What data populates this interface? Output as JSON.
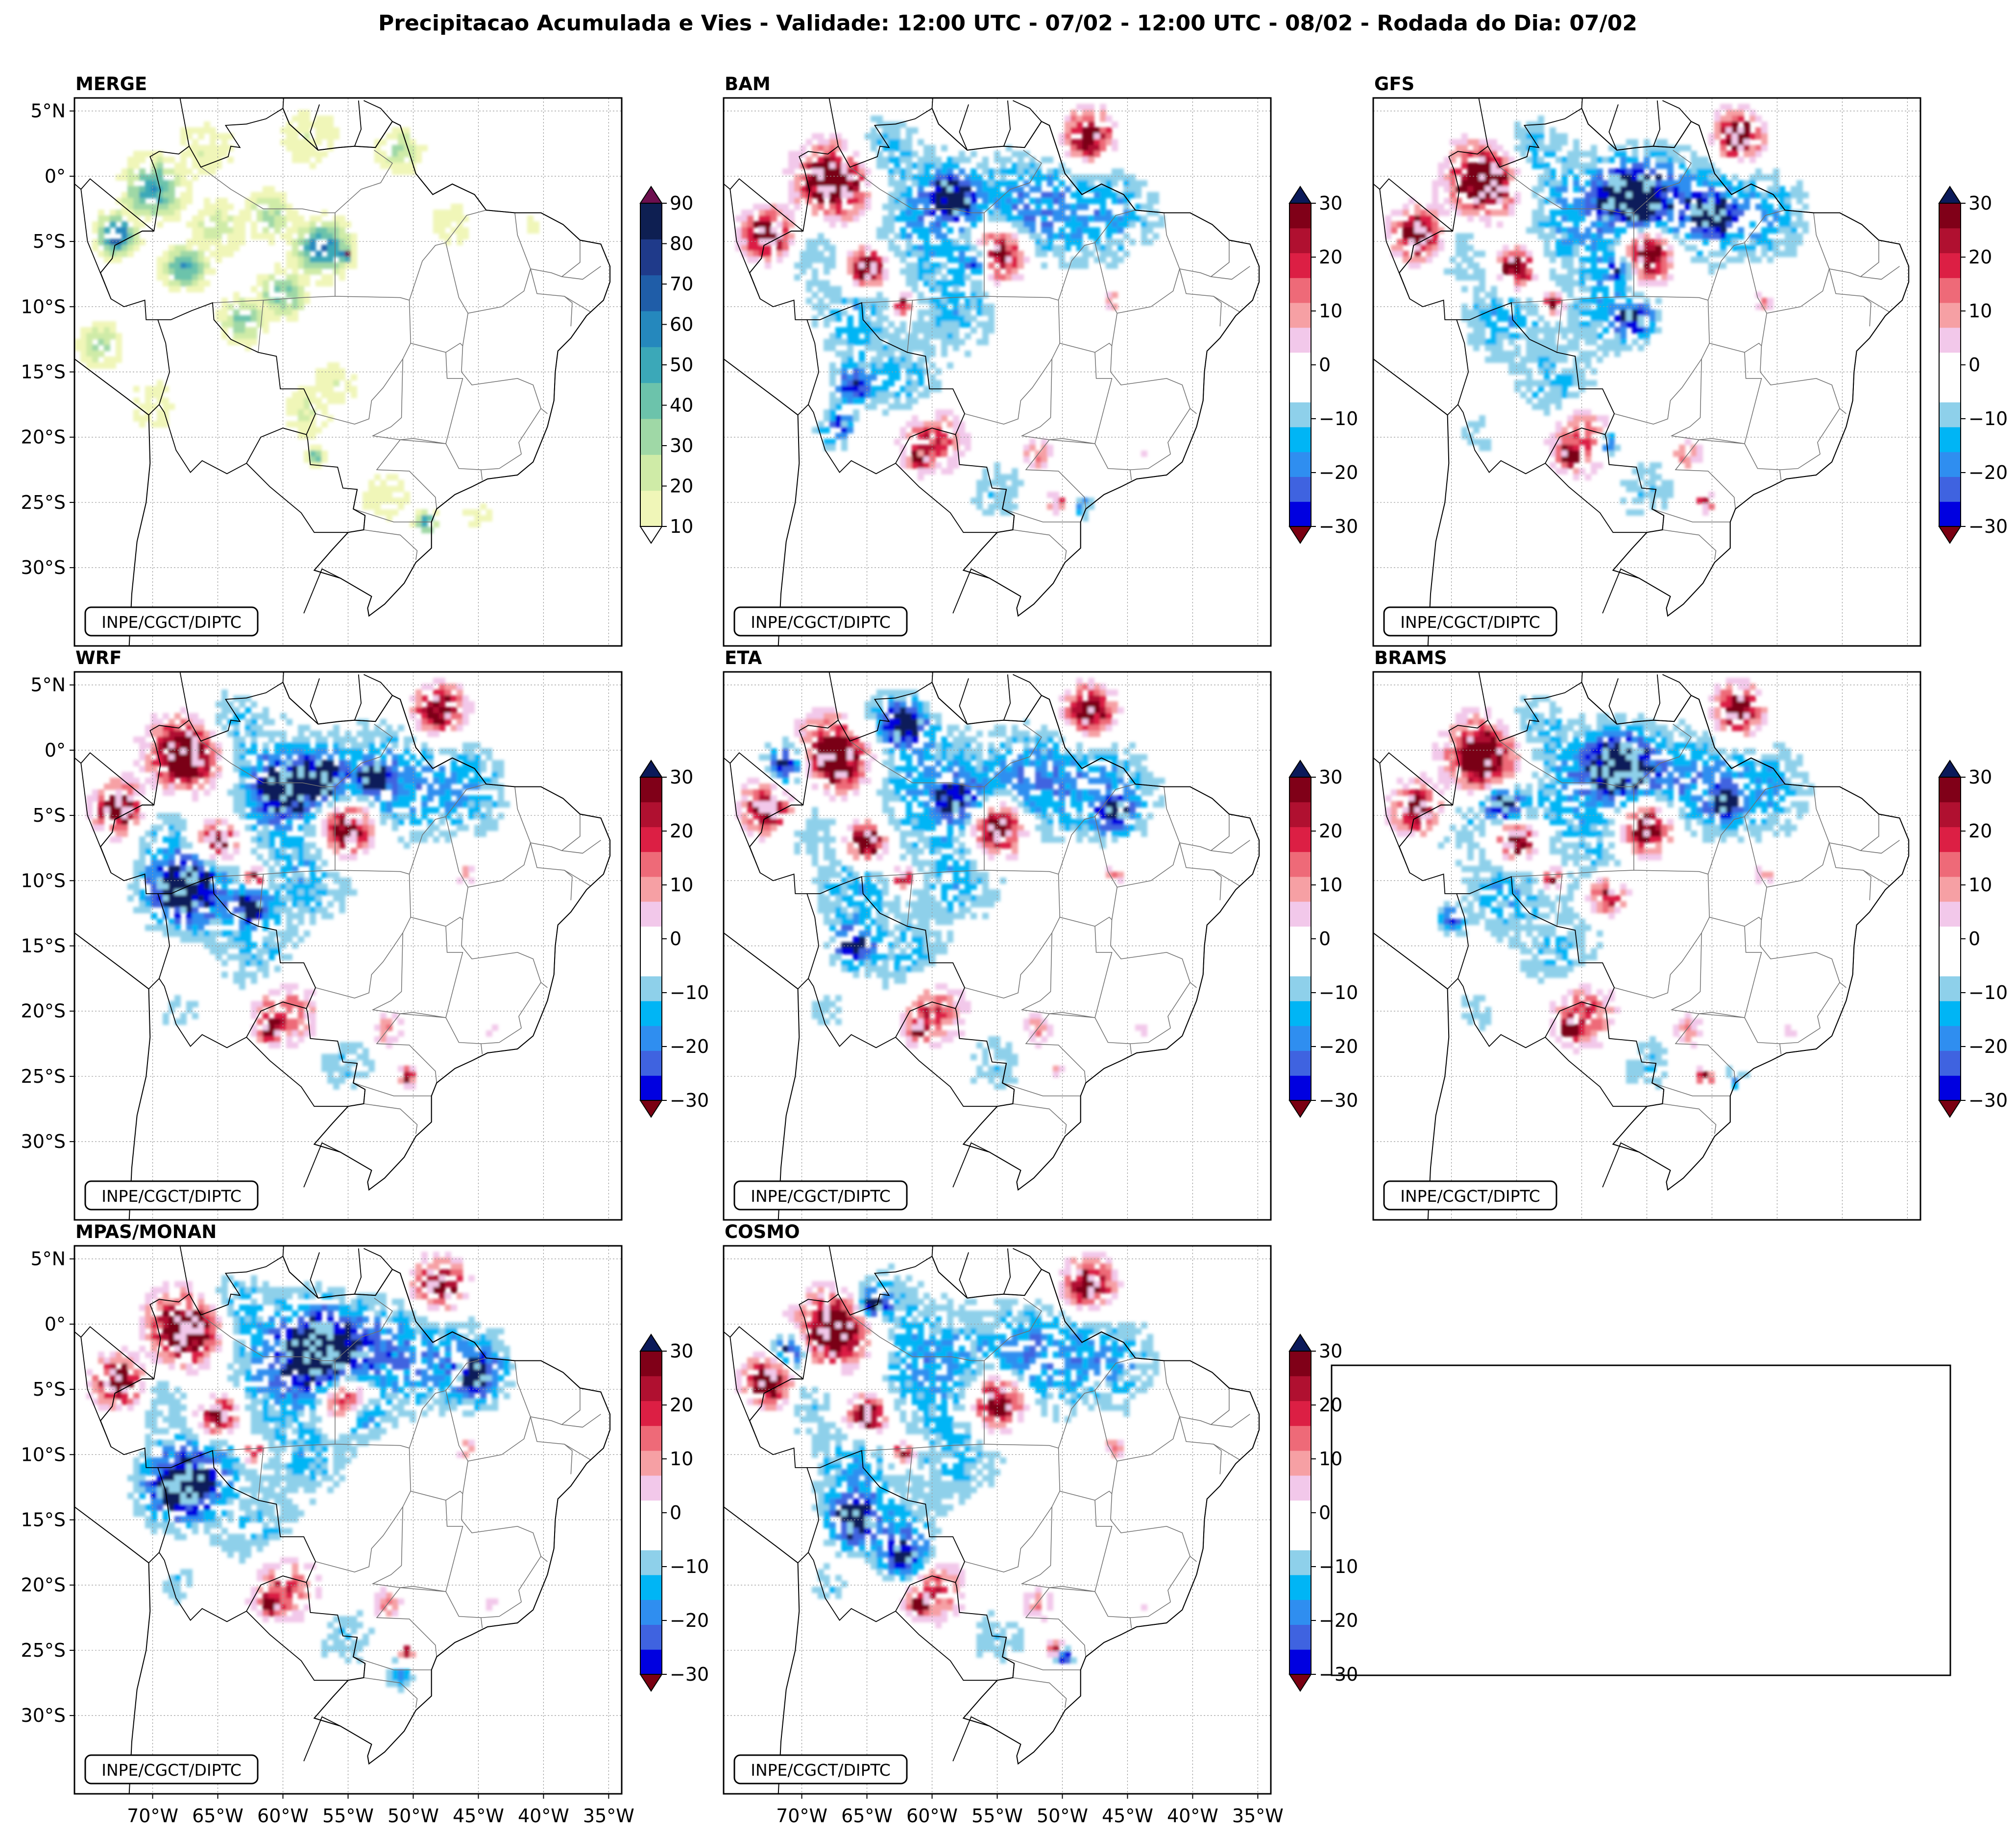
{
  "figure": {
    "title": "Precipitacao Acumulada e Vies - Validade: 12:00 UTC - 07/02 - 12:00 UTC - 08/02 - Rodada do Dia: 07/02"
  },
  "credit": "INPE/CGCT/DIPTC",
  "axes": {
    "lat_labels": [
      "5°N",
      "0°",
      "5°S",
      "10°S",
      "15°S",
      "20°S",
      "25°S",
      "30°S"
    ],
    "lon_labels": [
      "70°W",
      "65°W",
      "60°W",
      "55°W",
      "50°W",
      "45°W",
      "40°W",
      "35°W"
    ]
  },
  "colorbars": {
    "precipitation": {
      "ticks": [
        "10",
        "20",
        "30",
        "40",
        "50",
        "60",
        "70",
        "80",
        "90"
      ],
      "colors": [
        "#f0f6b8",
        "#cfeba7",
        "#9fd8a6",
        "#6cc3ab",
        "#3ba8b8",
        "#2588bd",
        "#1f5da8",
        "#1f3a8a",
        "#0e1f52"
      ],
      "over_color": "#6d0f4f",
      "under_color": "#ffffff"
    },
    "bias": {
      "ticks": [
        "30",
        "20",
        "10",
        "0",
        "−10",
        "−20",
        "−30"
      ],
      "colors": [
        "#0000e0",
        "#3f63e0",
        "#2f8ef0",
        "#00b5f5",
        "#8ed0ea",
        "#ffffff",
        "#ffffff",
        "#f2c8ea",
        "#f6a0a4",
        "#ee6a78",
        "#dc1f44",
        "#b01030",
        "#800018"
      ],
      "over_color": "#0b1a5a",
      "under_color": "#7a0012"
    }
  },
  "panels": [
    {
      "id": "merge",
      "title": "MERGE",
      "colorbar": "precipitation"
    },
    {
      "id": "bam",
      "title": "BAM",
      "colorbar": "bias"
    },
    {
      "id": "gfs",
      "title": "GFS",
      "colorbar": "bias"
    },
    {
      "id": "wrf",
      "title": "WRF",
      "colorbar": "bias"
    },
    {
      "id": "eta",
      "title": "ETA",
      "colorbar": "bias"
    },
    {
      "id": "brams",
      "title": "BRAMS",
      "colorbar": "bias"
    },
    {
      "id": "mpas",
      "title": "MPAS/MONAN",
      "colorbar": "bias"
    },
    {
      "id": "cosmo",
      "title": "COSMO",
      "colorbar": "bias"
    }
  ]
}
